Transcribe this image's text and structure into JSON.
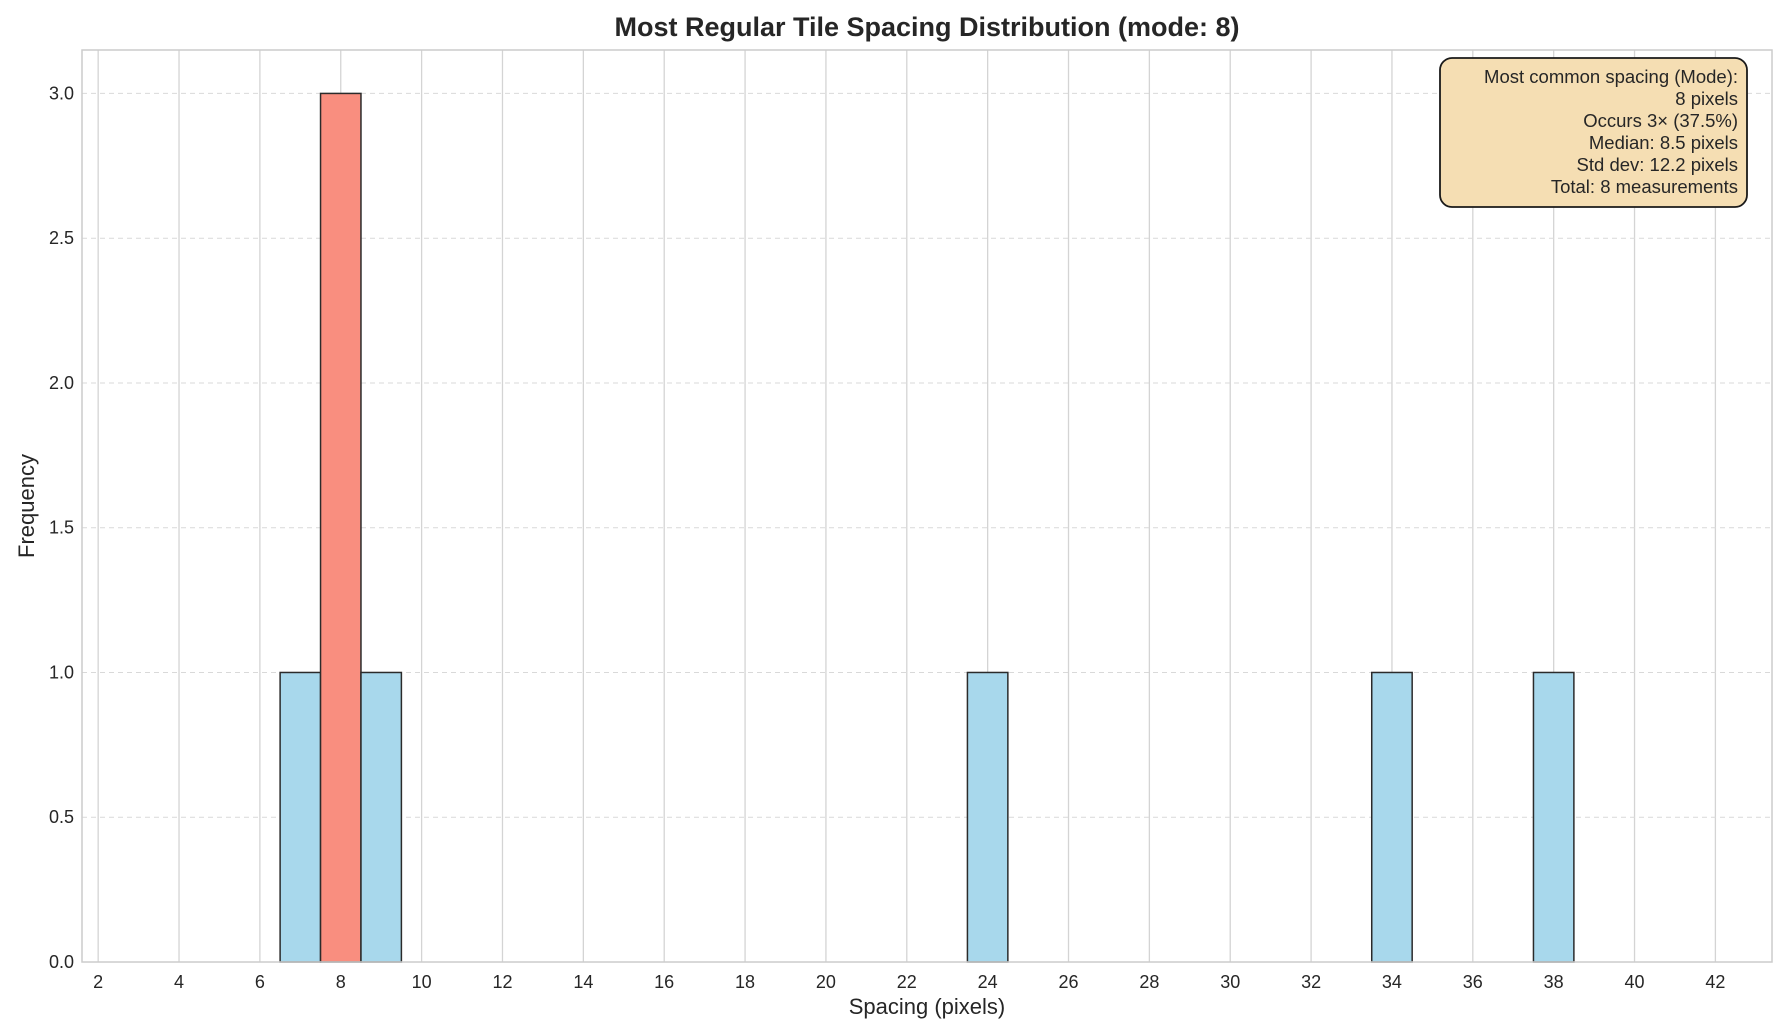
{
  "chart_data": {
    "type": "bar",
    "title": "Most Regular Tile Spacing Distribution (mode: 8)",
    "xlabel": "Spacing (pixels)",
    "ylabel": "Frequency",
    "xlim": [
      1.6,
      43.4
    ],
    "ylim": [
      0,
      3.15
    ],
    "x_ticks": [
      2,
      4,
      6,
      8,
      10,
      12,
      14,
      16,
      18,
      20,
      22,
      24,
      26,
      28,
      30,
      32,
      34,
      36,
      38,
      40,
      42
    ],
    "y_ticks": [
      0.0,
      0.5,
      1.0,
      1.5,
      2.0,
      2.5,
      3.0
    ],
    "bin_width": 1,
    "bins": [
      {
        "x": 7,
        "value": 1,
        "highlight": false
      },
      {
        "x": 8,
        "value": 3,
        "highlight": true
      },
      {
        "x": 9,
        "value": 1,
        "highlight": false
      },
      {
        "x": 24,
        "value": 1,
        "highlight": false
      },
      {
        "x": 34,
        "value": 1,
        "highlight": false
      },
      {
        "x": 38,
        "value": 1,
        "highlight": false
      }
    ],
    "colors": {
      "bar": "#a8d8ec",
      "mode_bar": "#f98e7f",
      "bar_edge": "#2b2b2b",
      "annotation_bg": "#f5deb3"
    },
    "grid": true,
    "annotation": {
      "position": "top-right",
      "lines": [
        "Most common spacing (Mode):",
        "8 pixels",
        "Occurs 3× (37.5%)",
        "Median: 8.5 pixels",
        "Std dev: 12.2 pixels",
        "Total: 8 measurements"
      ]
    }
  }
}
